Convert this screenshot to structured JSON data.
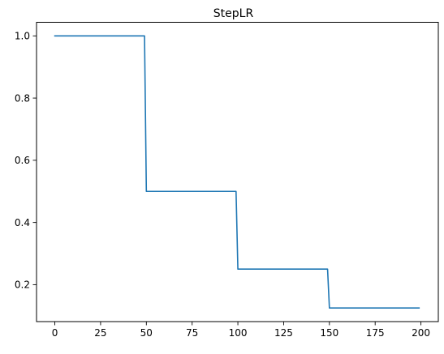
{
  "chart_data": {
    "type": "line",
    "title": "StepLR",
    "xlabel": "",
    "ylabel": "",
    "xlim": [
      -10,
      209.5
    ],
    "ylim": [
      0.08125,
      1.04375
    ],
    "grid": false,
    "legend": "none",
    "x_ticks": [
      {
        "value": 0,
        "label": "0"
      },
      {
        "value": 25,
        "label": "25"
      },
      {
        "value": 50,
        "label": "50"
      },
      {
        "value": 75,
        "label": "75"
      },
      {
        "value": 100,
        "label": "100"
      },
      {
        "value": 125,
        "label": "125"
      },
      {
        "value": 150,
        "label": "150"
      },
      {
        "value": 175,
        "label": "175"
      },
      {
        "value": 200,
        "label": "200"
      }
    ],
    "y_ticks": [
      {
        "value": 0.2,
        "label": "0.2"
      },
      {
        "value": 0.4,
        "label": "0.4"
      },
      {
        "value": 0.6,
        "label": "0.6"
      },
      {
        "value": 0.8,
        "label": "0.8"
      },
      {
        "value": 1.0,
        "label": "1.0"
      }
    ],
    "series": [
      {
        "color": "#1f77b4",
        "points": [
          {
            "x": 0,
            "y": 1.0
          },
          {
            "x": 49,
            "y": 1.0
          },
          {
            "x": 50,
            "y": 0.5
          },
          {
            "x": 99,
            "y": 0.5
          },
          {
            "x": 100,
            "y": 0.25
          },
          {
            "x": 149,
            "y": 0.25
          },
          {
            "x": 150,
            "y": 0.125
          },
          {
            "x": 199,
            "y": 0.125
          }
        ]
      }
    ]
  }
}
